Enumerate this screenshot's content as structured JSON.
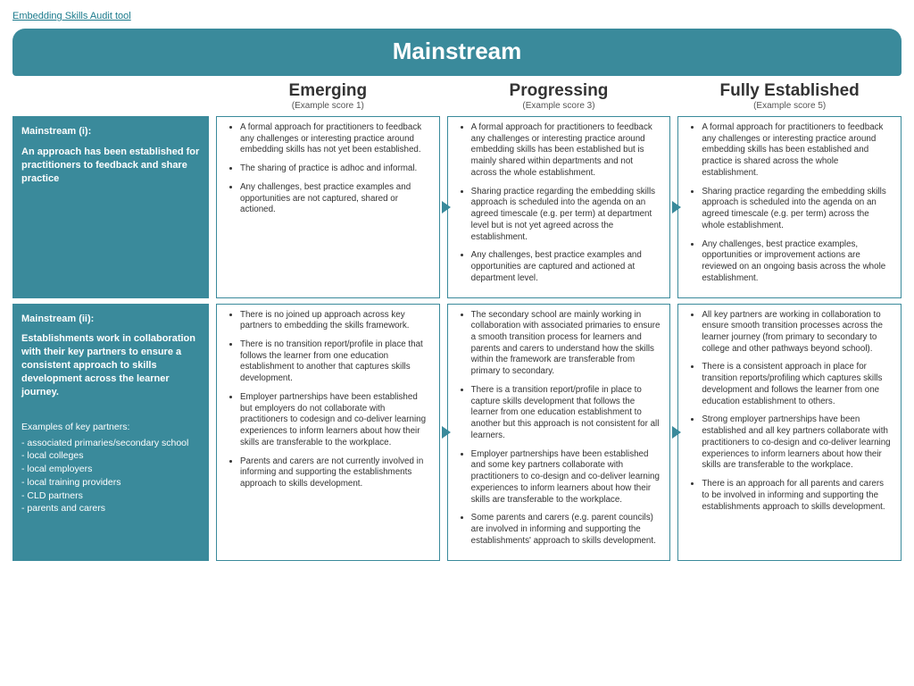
{
  "colors": {
    "teal": "#3a8a9b",
    "border": "#3a8a9b",
    "text": "#333333",
    "link": "#1a7a8c",
    "bg": "#ffffff"
  },
  "top_link": "Embedding Skills Audit tool",
  "title": "Mainstream",
  "columns": {
    "c1": {
      "title": "Emerging",
      "sub": "(Example score 1)"
    },
    "c2": {
      "title": "Progressing",
      "sub": "(Example score 3)"
    },
    "c3": {
      "title": "Fully Established",
      "sub": "(Example score 5)"
    }
  },
  "row1": {
    "side_header": "Mainstream (i):",
    "side_desc": "An approach has been established for practitioners to feedback and share practice",
    "emerging": [
      "A formal approach for practitioners to feedback any challenges or interesting practice around embedding skills has not yet been established.",
      "The sharing of practice is adhoc and informal.",
      "Any challenges, best practice examples and opportunities are not captured, shared or actioned."
    ],
    "progressing": [
      "A formal approach for practitioners to feedback any challenges or interesting practice around embedding skills has been established but is mainly shared within departments and not across the whole establishment.",
      "Sharing practice regarding the embedding skills approach is scheduled into the agenda on an agreed timescale (e.g. per term) at department level but is not yet agreed across the establishment.",
      "Any challenges, best practice examples and opportunities are captured and actioned at department level."
    ],
    "established": [
      "A formal approach for practitioners to feedback any challenges or interesting practice around embedding skills has been established and practice is shared across the whole establishment.",
      "Sharing practice regarding the embedding skills approach is scheduled into the agenda on an agreed timescale (e.g. per term) across the whole establishment.",
      "Any challenges, best practice examples, opportunities or improvement actions are reviewed on an ongoing basis across the whole establishment."
    ]
  },
  "row2": {
    "side_header": "Mainstream (ii):",
    "side_desc": "Establishments work in collaboration with their key partners to ensure a consistent approach to skills development across the learner journey.",
    "side_extra_title": "Examples of key partners:",
    "side_extra_items": [
      "- associated primaries/secondary school",
      "- local colleges",
      "- local employers",
      "- local training providers",
      "- CLD partners",
      "- parents and carers"
    ],
    "emerging": [
      "There is no joined up approach across key partners to embedding the skills framework.",
      "There is no transition report/profile in place that follows the learner from one education establishment to another that captures skills development.",
      "Employer partnerships have been established but employers do not collaborate with practitioners to codesign and co-deliver learning experiences to inform learners about how their skills are transferable to the workplace.",
      "Parents and carers are not currently involved in informing and supporting the establishments approach to skills development."
    ],
    "progressing": [
      "The secondary school are mainly working in collaboration with associated primaries to ensure a smooth transition process for learners and parents and carers to understand how the skills within the framework are transferable from primary to secondary.",
      "There is a transition report/profile in place to capture skills development that follows the learner from one education establishment to another but this approach is not consistent for all learners.",
      "Employer partnerships have been established and some key partners collaborate with practitioners to co-design and co-deliver learning experiences to inform learners about how their skills are transferable to the workplace.",
      "Some parents and carers (e.g. parent councils) are involved in informing and supporting the establishments' approach to skills development."
    ],
    "established": [
      "All key partners are working in collaboration to ensure smooth transition processes across the learner journey (from primary to secondary to college and other pathways beyond school).",
      "There is a consistent approach in place for transition reports/profiling which captures skills development and follows the learner from one education establishment to others.",
      "Strong employer partnerships have been established and all key partners collaborate with practitioners to co-design and co-deliver learning experiences to inform learners about how their skills are transferable to the workplace.",
      "There is an approach for all parents and carers to be involved in informing and supporting the establishments approach to skills development."
    ]
  }
}
